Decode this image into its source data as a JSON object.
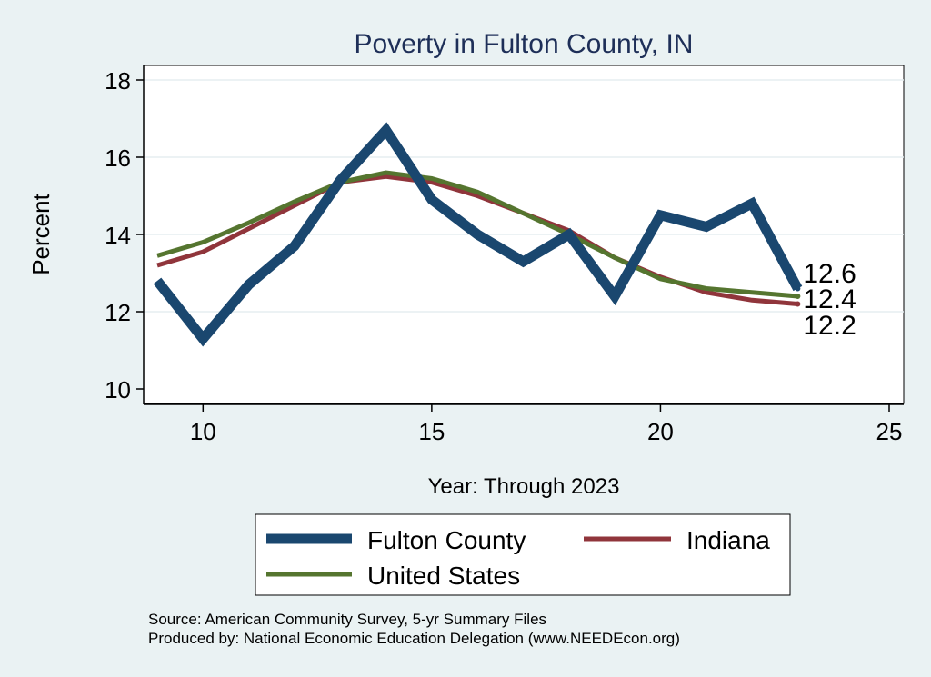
{
  "chart_data": {
    "type": "line",
    "title": "Poverty in Fulton County, IN",
    "xlabel": "Year: Through 2023",
    "ylabel": "Percent",
    "xlim": [
      9,
      25
    ],
    "ylim": [
      10,
      18
    ],
    "xticks": [
      10,
      15,
      20,
      25
    ],
    "yticks": [
      10,
      12,
      14,
      16,
      18
    ],
    "x": [
      9,
      10,
      11,
      12,
      13,
      14,
      15,
      16,
      17,
      18,
      19,
      20,
      21,
      22,
      23
    ],
    "series": [
      {
        "name": "Fulton County",
        "color": "#1a476f",
        "values": [
          12.8,
          11.3,
          12.7,
          13.7,
          15.4,
          16.7,
          14.9,
          14.0,
          13.3,
          14.0,
          12.4,
          14.5,
          14.2,
          14.8,
          12.6
        ],
        "end_label": "12.6"
      },
      {
        "name": "Indiana",
        "color": "#90353b",
        "values": [
          13.2,
          13.55,
          14.15,
          14.75,
          15.35,
          15.5,
          15.35,
          15.0,
          14.55,
          14.1,
          13.4,
          12.9,
          12.5,
          12.3,
          12.2
        ],
        "end_label": "12.2"
      },
      {
        "name": "United States",
        "color": "#55752f",
        "values": [
          13.45,
          13.8,
          14.3,
          14.85,
          15.35,
          15.6,
          15.45,
          15.1,
          14.55,
          14.0,
          13.4,
          12.85,
          12.6,
          12.5,
          12.4
        ],
        "end_label": "12.4"
      }
    ],
    "legend": {
      "position": "bottom"
    }
  },
  "notes": {
    "source": "Source: American Community Survey, 5-yr Summary Files",
    "produced": "Produced by: National Economic Education Delegation (www.NEEDEcon.org)"
  }
}
